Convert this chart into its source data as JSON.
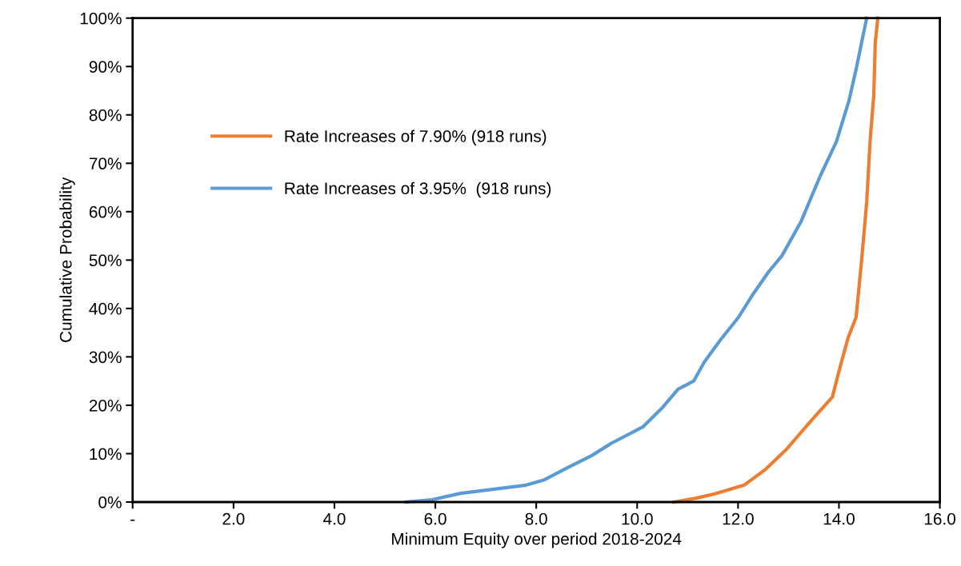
{
  "chart_data": {
    "type": "line",
    "xlabel": "Minimum Equity over period 2018-2024",
    "ylabel": "Cumulative Probability",
    "xlim": [
      0,
      16
    ],
    "xticks": [
      {
        "value": 0,
        "label": "-"
      },
      {
        "value": 2,
        "label": "2.0"
      },
      {
        "value": 4,
        "label": "4.0"
      },
      {
        "value": 6,
        "label": "6.0"
      },
      {
        "value": 8,
        "label": "8.0"
      },
      {
        "value": 10,
        "label": "10.0"
      },
      {
        "value": 12,
        "label": "12.0"
      },
      {
        "value": 14,
        "label": "14.0"
      },
      {
        "value": 16,
        "label": "16.0"
      }
    ],
    "ylim": [
      0,
      100
    ],
    "yticks": [
      {
        "value": 0,
        "label": "0%"
      },
      {
        "value": 10,
        "label": "10%"
      },
      {
        "value": 20,
        "label": "20%"
      },
      {
        "value": 30,
        "label": "30%"
      },
      {
        "value": 40,
        "label": "40%"
      },
      {
        "value": 50,
        "label": "50%"
      },
      {
        "value": 60,
        "label": "60%"
      },
      {
        "value": 70,
        "label": "70%"
      },
      {
        "value": 80,
        "label": "80%"
      },
      {
        "value": 90,
        "label": "90%"
      },
      {
        "value": 100,
        "label": "100%"
      }
    ],
    "grid": false,
    "legend": "top left",
    "marker": "none",
    "line_style": "solid",
    "series": [
      {
        "name": "Rate Increases of 7.90% (918 runs)",
        "color": "#ed7d31",
        "x": [
          10.73,
          11.17,
          11.54,
          12.12,
          12.55,
          12.96,
          13.44,
          13.87,
          14.02,
          14.18,
          14.34,
          14.45,
          14.55,
          14.62,
          14.69,
          14.72,
          14.77
        ],
        "values": [
          0,
          0.8,
          1.7,
          3.5,
          6.8,
          10.9,
          16.7,
          21.7,
          27.8,
          33.9,
          38.2,
          50,
          62,
          75,
          84,
          95,
          100
        ]
      },
      {
        "name": "Rate Increases of 3.95%  (918 runs)",
        "color": "#5b9bd5",
        "x": [
          5.42,
          5.94,
          6.5,
          7.2,
          7.8,
          8.16,
          8.68,
          9.1,
          9.48,
          10.11,
          10.5,
          10.81,
          11.12,
          11.33,
          11.65,
          12.01,
          12.3,
          12.6,
          12.87,
          13.25,
          13.63,
          13.95,
          14.2,
          14.34,
          14.45,
          14.55
        ],
        "values": [
          0,
          0.5,
          1.8,
          2.7,
          3.5,
          4.6,
          7.4,
          9.6,
          12.1,
          15.5,
          19.5,
          23.3,
          25,
          28.9,
          33.5,
          38.2,
          43,
          47.5,
          50.9,
          58,
          67.4,
          74.5,
          83,
          89.4,
          95,
          100
        ]
      }
    ]
  }
}
